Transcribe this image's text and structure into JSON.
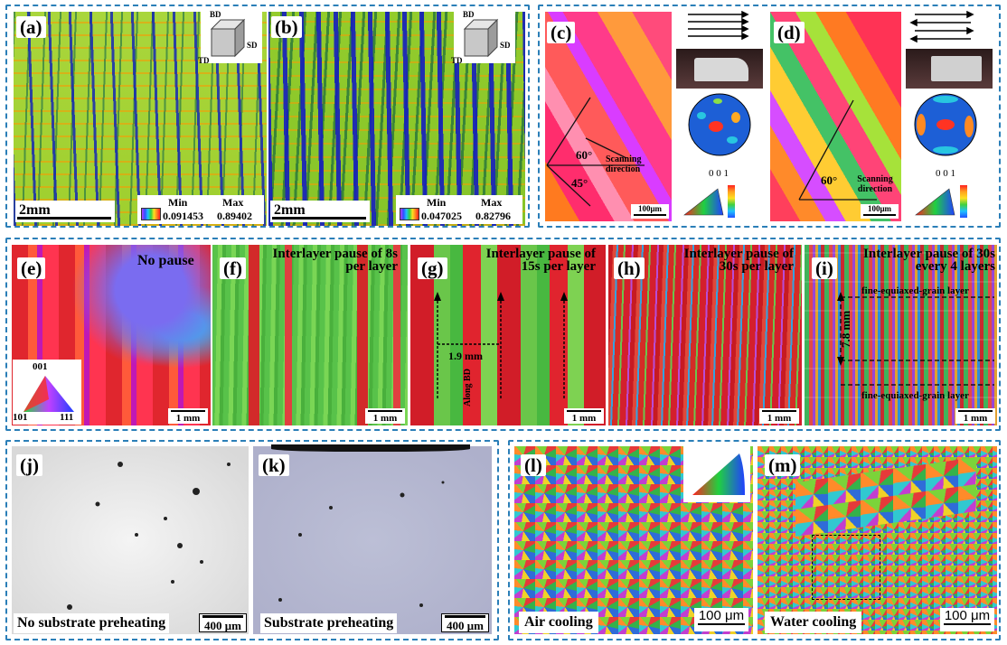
{
  "panels": {
    "a": {
      "label": "(a)",
      "scale": "2mm",
      "min_label": "Min",
      "min_value": "0.091453",
      "max_label": "Max",
      "max_value": "0.89402",
      "axis_bd": "BD",
      "axis_sd": "SD",
      "axis_td": "TD"
    },
    "b": {
      "label": "(b)",
      "scale": "2mm",
      "min_label": "Min",
      "min_value": "0.047025",
      "max_label": "Max",
      "max_value": "0.82796",
      "axis_bd": "BD",
      "axis_sd": "SD",
      "axis_td": "TD"
    },
    "c": {
      "label": "(c)",
      "angle1": "60°",
      "angle2": "45°",
      "scan_text": "Scanning direction",
      "scale": "100μm",
      "pf_label": "0 0 1"
    },
    "d": {
      "label": "(d)",
      "angle1": "60°",
      "scan_text": "Scanning direction",
      "scale": "100μm",
      "pf_label": "0 0 1"
    },
    "e": {
      "label": "(e)",
      "title": "No pause",
      "key_001": "001",
      "key_101": "101",
      "key_111": "111",
      "scale": "1 mm"
    },
    "f": {
      "label": "(f)",
      "title": "Interlayer pause of 8s per layer",
      "scale": "1 mm"
    },
    "g": {
      "label": "(g)",
      "title": "Interlayer pause of 15s per layer",
      "dim": "1.9 mm",
      "along": "Along BD",
      "scale": "1 mm"
    },
    "h": {
      "label": "(h)",
      "title": "Interlayer pause of 30s per layer",
      "scale": "1 mm"
    },
    "i": {
      "label": "(i)",
      "title": "Interlayer pause of 30s every 4 layers",
      "dim": "7.8 mm",
      "layer1": "fine-equiaxed-grain layer",
      "layer2": "fine-equiaxed-grain layer",
      "scale": "1 mm"
    },
    "j": {
      "label": "(j)",
      "caption": "No substrate preheating",
      "scale": "400 μm"
    },
    "k": {
      "label": "(k)",
      "caption": "Substrate preheating",
      "scale": "400 μm"
    },
    "l": {
      "label": "(l)",
      "caption": "Air cooling",
      "scale": "100 μm"
    },
    "m": {
      "label": "(m)",
      "caption": "Water cooling",
      "scale": "100 μm"
    }
  }
}
